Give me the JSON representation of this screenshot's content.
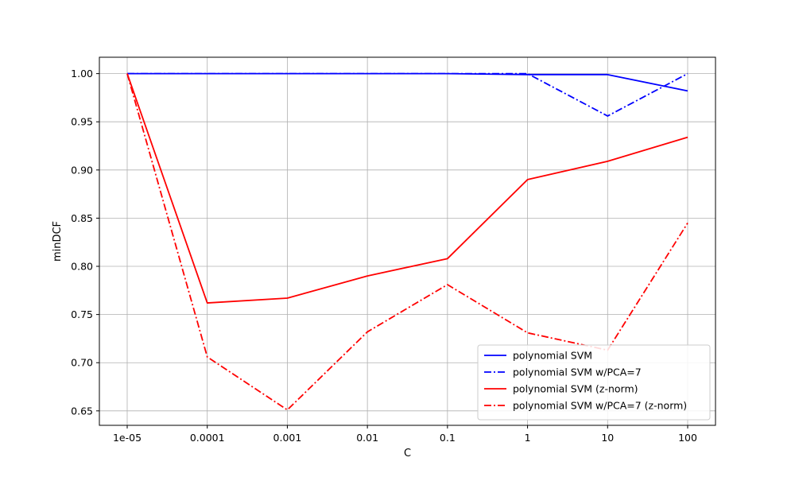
{
  "chart_data": {
    "type": "line",
    "title": "",
    "xlabel": "C",
    "ylabel": "minDCF",
    "categories": [
      "1e-05",
      "0.0001",
      "0.001",
      "0.01",
      "0.1",
      "1",
      "10",
      "100"
    ],
    "ylim": [
      0.635,
      1.017
    ],
    "yticks": [
      "0.65",
      "0.70",
      "0.75",
      "0.80",
      "0.85",
      "0.90",
      "0.95",
      "1.00"
    ],
    "grid": true,
    "legend_position": "bottom-right",
    "series": [
      {
        "name": "polynomial SVM",
        "color": "#0000ff",
        "dash": "solid",
        "values": [
          1.0,
          1.0,
          1.0,
          1.0,
          1.0,
          0.999,
          0.999,
          0.982
        ]
      },
      {
        "name": "polynomial SVM w/PCA=7",
        "color": "#0000ff",
        "dash": "dashdot",
        "values": [
          1.0,
          1.0,
          1.0,
          1.0,
          1.0,
          1.0,
          0.956,
          1.0
        ]
      },
      {
        "name": "polynomial SVM (z-norm)",
        "color": "#ff0000",
        "dash": "solid",
        "values": [
          1.0,
          0.762,
          0.767,
          0.79,
          0.808,
          0.89,
          0.909,
          0.934
        ]
      },
      {
        "name": "polynomial SVM w/PCA=7 (z-norm)",
        "color": "#ff0000",
        "dash": "dashdot",
        "values": [
          1.0,
          0.706,
          0.651,
          0.732,
          0.781,
          0.731,
          0.713,
          0.845
        ]
      }
    ]
  }
}
